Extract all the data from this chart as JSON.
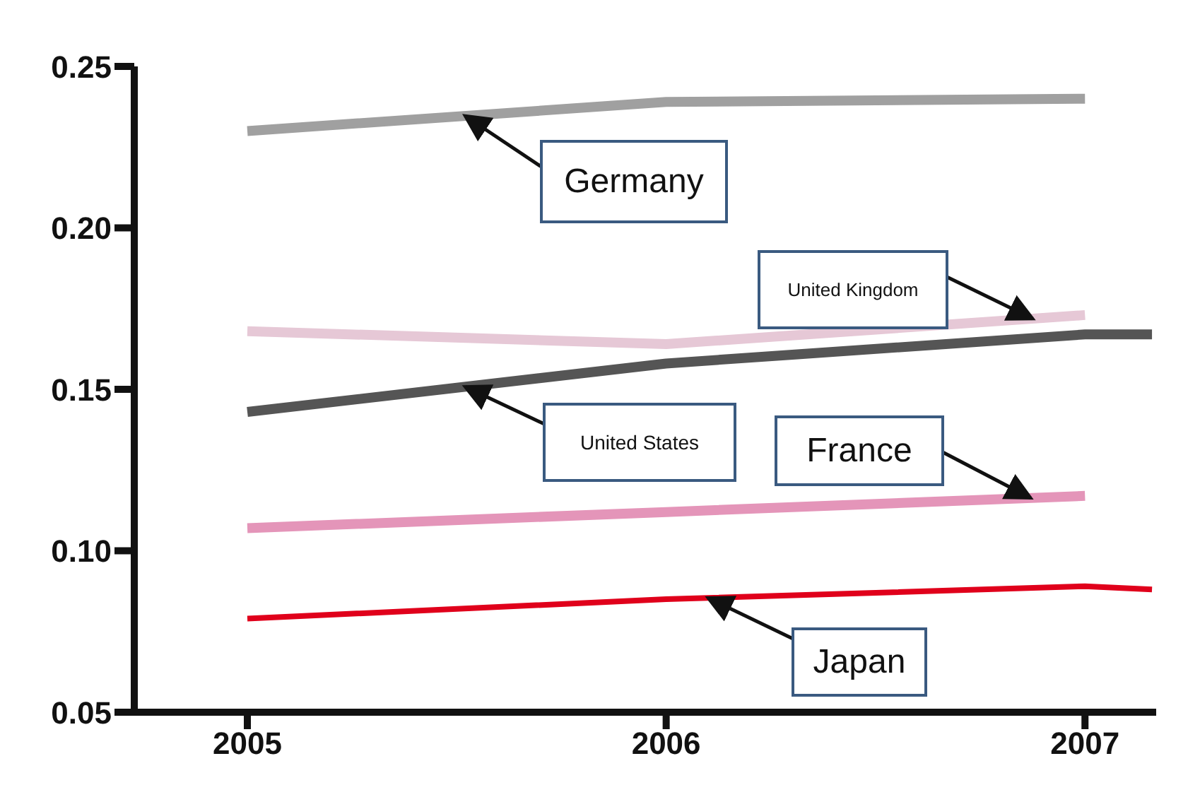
{
  "chart_data": {
    "type": "line",
    "xlim": [
      2004.73,
      2007.17
    ],
    "xticks": [
      2005,
      2006,
      2007
    ],
    "ylim": [
      0.05,
      0.25
    ],
    "yticks": [
      {
        "value": 0.05,
        "label": "0.05"
      },
      {
        "value": 0.1,
        "label": "0.10"
      },
      {
        "value": 0.15,
        "label": "0.15"
      },
      {
        "value": 0.2,
        "label": "0.20"
      },
      {
        "value": 0.25,
        "label": "0.25"
      }
    ],
    "grid": false,
    "marker": "none",
    "line_style": "solid",
    "series": [
      {
        "name": "Germany",
        "color": "#a0a0a0",
        "x": [
          2005,
          2006,
          2007
        ],
        "values": [
          0.23,
          0.239,
          0.24
        ]
      },
      {
        "name": "United Kingdom",
        "color": "#e6c8d6",
        "x": [
          2005,
          2006,
          2007
        ],
        "values": [
          0.168,
          0.164,
          0.173
        ]
      },
      {
        "name": "United States",
        "color": "#555555",
        "x": [
          2005,
          2006,
          2007,
          2007.16
        ],
        "values": [
          0.143,
          0.158,
          0.167,
          0.167
        ]
      },
      {
        "name": "France",
        "color": "#e495b9",
        "x": [
          2005,
          2006,
          2007
        ],
        "values": [
          0.107,
          0.112,
          0.117
        ]
      },
      {
        "name": "Japan",
        "color": "#e0001b",
        "x": [
          2005,
          2006,
          2007,
          2007.16
        ],
        "values": [
          0.079,
          0.085,
          0.089,
          0.088
        ]
      }
    ]
  }
}
